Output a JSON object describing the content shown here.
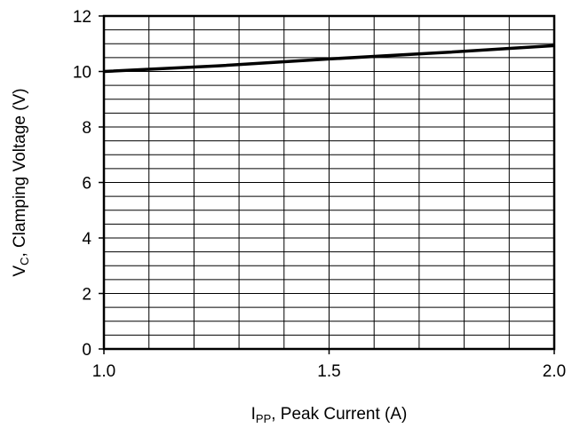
{
  "chart_data": {
    "type": "line",
    "title": "",
    "xlabel": {
      "main": "I",
      "subscript": "PP",
      "rest": ", Peak Current (A)"
    },
    "ylabel": {
      "main": "V",
      "subscript": "C",
      "rest": ", Clamping Voltage (V)"
    },
    "xlim": [
      1.0,
      2.0
    ],
    "ylim": [
      0,
      12
    ],
    "x_ticks": [
      "1.0",
      "1.5",
      "2.0"
    ],
    "y_ticks": [
      "0",
      "2",
      "4",
      "6",
      "8",
      "10",
      "12"
    ],
    "grid": true,
    "legend": "none",
    "series": [
      {
        "color": "#000000",
        "x": [
          1.0,
          1.25,
          1.5,
          1.75,
          2.0
        ],
        "y": [
          10.0,
          10.2,
          10.45,
          10.68,
          10.93
        ]
      }
    ]
  }
}
